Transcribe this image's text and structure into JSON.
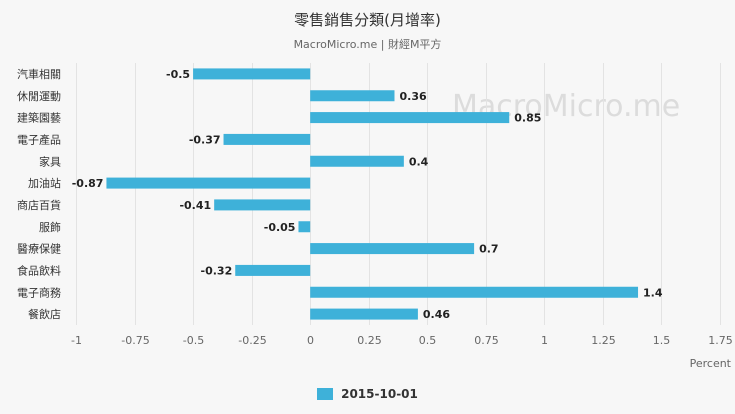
{
  "chart_data": {
    "type": "bar",
    "orientation": "horizontal",
    "title": "零售銷售分類(月增率)",
    "subtitle": "MacroMicro.me | 財經M平方",
    "watermark": "MacroMicro.me",
    "xlabel": "Percent",
    "xlim": [
      -1,
      1.75
    ],
    "xticks": [
      -1,
      -0.75,
      -0.5,
      -0.25,
      0,
      0.25,
      0.5,
      0.75,
      1,
      1.25,
      1.5,
      1.75
    ],
    "xtick_labels": [
      "-1",
      "-0.75",
      "-0.5",
      "-0.25",
      "0",
      "0.25",
      "0.5",
      "0.75",
      "1",
      "1.25",
      "1.5",
      "1.75"
    ],
    "grid": true,
    "legend_position": "bottom-center",
    "categories": [
      "汽車相關",
      "休閒運動",
      "建築園藝",
      "電子產品",
      "家具",
      "加油站",
      "商店百貨",
      "服飾",
      "醫療保健",
      "食品飲料",
      "電子商務",
      "餐飲店"
    ],
    "series": [
      {
        "name": "2015-10-01",
        "color": "#3eb1d9",
        "values": [
          -0.5,
          0.36,
          0.85,
          -0.37,
          0.4,
          -0.87,
          -0.41,
          -0.05,
          0.7,
          -0.32,
          1.4,
          0.46
        ],
        "value_labels": [
          "-0.5",
          "0.36",
          "0.85",
          "-0.37",
          "0.4",
          "-0.87",
          "-0.41",
          "-0.05",
          "0.7",
          "-0.32",
          "1.4",
          "0.46"
        ]
      }
    ]
  }
}
